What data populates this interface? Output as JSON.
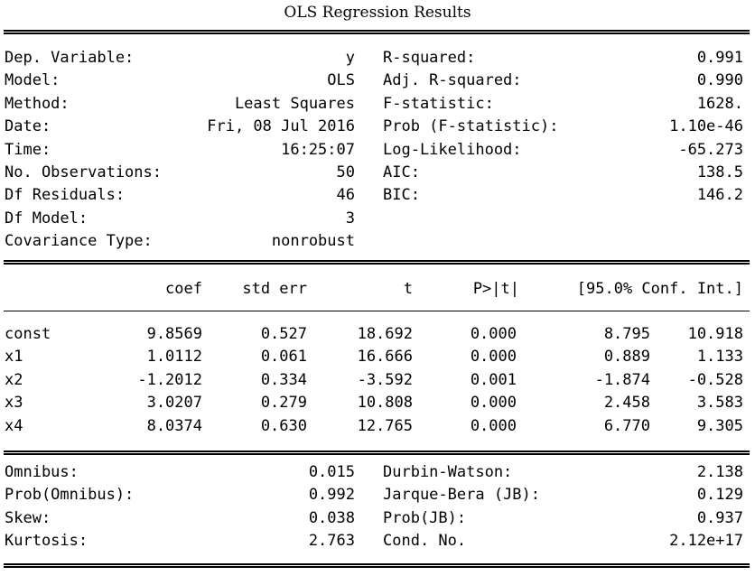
{
  "title": "OLS Regression Results",
  "summary": {
    "left": [
      {
        "label": "Dep. Variable:",
        "value": "y"
      },
      {
        "label": "Model:",
        "value": "OLS"
      },
      {
        "label": "Method:",
        "value": "Least Squares"
      },
      {
        "label": "Date:",
        "value": "Fri, 08 Jul 2016"
      },
      {
        "label": "Time:",
        "value": "16:25:07"
      },
      {
        "label": "No. Observations:",
        "value": "50"
      },
      {
        "label": "Df Residuals:",
        "value": "46"
      },
      {
        "label": "Df Model:",
        "value": "3"
      },
      {
        "label": "Covariance Type:",
        "value": "nonrobust"
      }
    ],
    "right": [
      {
        "label": "R-squared:",
        "value": "0.991"
      },
      {
        "label": "Adj. R-squared:",
        "value": "0.990"
      },
      {
        "label": "F-statistic:",
        "value": "1628."
      },
      {
        "label": "Prob (F-statistic):",
        "value": "1.10e-46"
      },
      {
        "label": "Log-Likelihood:",
        "value": "-65.273"
      },
      {
        "label": "AIC:",
        "value": "138.5"
      },
      {
        "label": "BIC:",
        "value": "146.2"
      }
    ]
  },
  "coef_table": {
    "headers": [
      "coef",
      "std err",
      "t",
      "P>|t|",
      "[95.0% Conf. Int.]"
    ],
    "rows": [
      {
        "name": "const",
        "coef": "9.8569",
        "std_err": "0.527",
        "t": "18.692",
        "p": "0.000",
        "ci_low": "8.795",
        "ci_high": "10.918"
      },
      {
        "name": "x1",
        "coef": "1.0112",
        "std_err": "0.061",
        "t": "16.666",
        "p": "0.000",
        "ci_low": "0.889",
        "ci_high": "1.133"
      },
      {
        "name": "x2",
        "coef": "-1.2012",
        "std_err": "0.334",
        "t": "-3.592",
        "p": "0.001",
        "ci_low": "-1.874",
        "ci_high": "-0.528"
      },
      {
        "name": "x3",
        "coef": "3.0207",
        "std_err": "0.279",
        "t": "10.808",
        "p": "0.000",
        "ci_low": "2.458",
        "ci_high": "3.583"
      },
      {
        "name": "x4",
        "coef": "8.0374",
        "std_err": "0.630",
        "t": "12.765",
        "p": "0.000",
        "ci_low": "6.770",
        "ci_high": "9.305"
      }
    ]
  },
  "diagnostics": {
    "left": [
      {
        "label": "Omnibus:",
        "value": "0.015"
      },
      {
        "label": "Prob(Omnibus):",
        "value": "0.992"
      },
      {
        "label": "Skew:",
        "value": "0.038"
      },
      {
        "label": "Kurtosis:",
        "value": "2.763"
      }
    ],
    "right": [
      {
        "label": "Durbin-Watson:",
        "value": "2.138"
      },
      {
        "label": "Jarque-Bera (JB):",
        "value": "0.129"
      },
      {
        "label": "Prob(JB):",
        "value": "0.937"
      },
      {
        "label": "Cond. No.",
        "value": "2.12e+17"
      }
    ]
  }
}
